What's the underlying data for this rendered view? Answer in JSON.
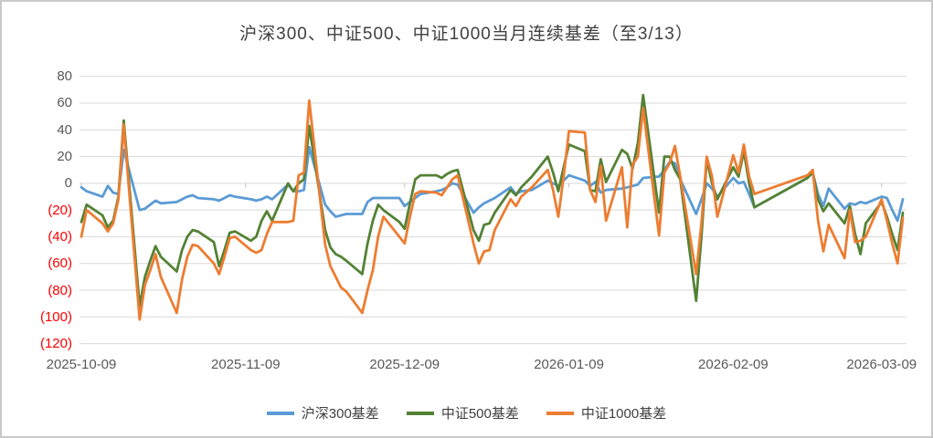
{
  "colors": {
    "grid": "#d9d9d9",
    "tick": "#bfbfbf",
    "axis_label": "#595959",
    "negative_label": "#ff0000",
    "title": "#404040",
    "series_hs300": "#5b9bd5",
    "series_zz500": "#548235",
    "series_zz1000": "#ed7d31"
  },
  "chart_data": {
    "type": "line",
    "title": "沪深300、中证500、中证1000当月连续基差（至3/13）",
    "xlabel": "",
    "ylabel": "",
    "grid": true,
    "legend_position": "bottom",
    "y_axis": {
      "min": -120,
      "max": 80,
      "step": 20,
      "negative_format": "parentheses-red"
    },
    "x_axis": {
      "ticks": [
        "2025-10-09",
        "2025-11-09",
        "2025-12-09",
        "2026-01-09",
        "2026-02-09",
        "2026-03-09"
      ],
      "tick_labels": [
        "2025-10-09",
        "2025-11-09",
        "2025-12-09",
        "2026-01-09",
        "2026-02-09",
        "2026-03-09"
      ]
    },
    "dates": [
      "2025-10-09",
      "2025-10-10",
      "2025-10-13",
      "2025-10-14",
      "2025-10-15",
      "2025-10-16",
      "2025-10-17",
      "2025-10-20",
      "2025-10-21",
      "2025-10-22",
      "2025-10-23",
      "2025-10-24",
      "2025-10-27",
      "2025-10-28",
      "2025-10-29",
      "2025-10-30",
      "2025-10-31",
      "2025-11-03",
      "2025-11-04",
      "2025-11-05",
      "2025-11-06",
      "2025-11-07",
      "2025-11-10",
      "2025-11-11",
      "2025-11-12",
      "2025-11-13",
      "2025-11-14",
      "2025-11-17",
      "2025-11-18",
      "2025-11-19",
      "2025-11-20",
      "2025-11-21",
      "2025-11-24",
      "2025-11-25",
      "2025-11-26",
      "2025-11-27",
      "2025-11-28",
      "2025-12-01",
      "2025-12-02",
      "2025-12-03",
      "2025-12-04",
      "2025-12-05",
      "2025-12-08",
      "2025-12-09",
      "2025-12-10",
      "2025-12-11",
      "2025-12-12",
      "2025-12-15",
      "2025-12-16",
      "2025-12-17",
      "2025-12-18",
      "2025-12-19",
      "2025-12-22",
      "2025-12-23",
      "2025-12-24",
      "2025-12-25",
      "2025-12-26",
      "2025-12-29",
      "2025-12-30",
      "2025-12-31",
      "2026-01-02",
      "2026-01-05",
      "2026-01-06",
      "2026-01-07",
      "2026-01-08",
      "2026-01-09",
      "2026-01-12",
      "2026-01-13",
      "2026-01-14",
      "2026-01-15",
      "2026-01-16",
      "2026-01-19",
      "2026-01-20",
      "2026-01-21",
      "2026-01-22",
      "2026-01-23",
      "2026-01-26",
      "2026-01-27",
      "2026-01-28",
      "2026-01-29",
      "2026-01-30",
      "2026-02-02",
      "2026-02-03",
      "2026-02-04",
      "2026-02-05",
      "2026-02-06",
      "2026-02-09",
      "2026-02-10",
      "2026-02-11",
      "2026-02-12",
      "2026-02-13",
      "2026-02-23",
      "2026-02-24",
      "2026-02-25",
      "2026-02-26",
      "2026-02-27",
      "2026-03-02",
      "2026-03-03",
      "2026-03-04",
      "2026-03-05",
      "2026-03-06",
      "2026-03-09",
      "2026-03-10",
      "2026-03-11",
      "2026-03-12",
      "2026-03-13"
    ],
    "series": [
      {
        "name": "沪深300基差",
        "color": "#5b9bd5",
        "values": [
          -3,
          -6,
          -10,
          -2,
          -7,
          -8,
          25,
          -20,
          -19,
          -16,
          -13,
          -15,
          -14,
          -12,
          -10,
          -9,
          -11,
          -12,
          -13,
          -11,
          -9,
          -10,
          -12,
          -13,
          -12,
          -10,
          -12,
          -1,
          -6,
          -6,
          -5,
          27,
          -16,
          -21,
          -25,
          -24,
          -23,
          -23,
          -14,
          -11,
          -11,
          -11,
          -11,
          -17,
          -14,
          -11,
          -8,
          -6,
          -5,
          -3,
          0,
          -1,
          -22,
          -18,
          -15,
          -13,
          -11,
          -3,
          -8,
          -6,
          -5,
          2,
          0,
          -2,
          2,
          6,
          2,
          -2,
          1,
          -7,
          -5,
          -4,
          -3,
          -2,
          -1,
          4,
          5,
          10,
          16,
          15,
          3,
          -23,
          -12,
          0,
          -4,
          -10,
          4,
          0,
          1,
          -8,
          -18,
          4,
          8,
          -8,
          -17,
          -4,
          -19,
          -15,
          -16,
          -14,
          -15,
          -10,
          -11,
          -20,
          -28,
          -12
        ]
      },
      {
        "name": "中证500基差",
        "color": "#548235",
        "values": [
          -29,
          -16,
          -24,
          -33,
          -28,
          -10,
          47,
          -92,
          -70,
          -58,
          -47,
          -55,
          -66,
          -50,
          -40,
          -35,
          -36,
          -44,
          -62,
          -50,
          -37,
          -36,
          -43,
          -40,
          -28,
          -21,
          -28,
          0,
          -6,
          0,
          3,
          43,
          -35,
          -48,
          -53,
          -55,
          -58,
          -68,
          -45,
          -28,
          -16,
          -20,
          -29,
          -34,
          -15,
          3,
          6,
          6,
          4,
          7,
          9,
          10,
          -35,
          -43,
          -31,
          -30,
          -22,
          -5,
          -9,
          -3,
          5,
          20,
          8,
          -6,
          12,
          29,
          24,
          -5,
          -6,
          18,
          1,
          25,
          22,
          11,
          30,
          66,
          -22,
          20,
          20,
          10,
          3,
          -88,
          -40,
          18,
          0,
          -12,
          12,
          5,
          24,
          0,
          -18,
          4,
          8,
          -12,
          -21,
          -15,
          -30,
          -17,
          -38,
          -53,
          -30,
          -14,
          -25,
          -38,
          -50,
          -22
        ]
      },
      {
        "name": "中证1000基差",
        "color": "#ed7d31",
        "values": [
          -40,
          -20,
          -30,
          -36,
          -30,
          -12,
          44,
          -102,
          -76,
          -65,
          -53,
          -70,
          -97,
          -72,
          -55,
          -46,
          -47,
          -60,
          -68,
          -55,
          -41,
          -40,
          -50,
          -52,
          -50,
          -38,
          -29,
          -29,
          -28,
          6,
          8,
          62,
          -46,
          -62,
          -70,
          -78,
          -81,
          -97,
          -80,
          -65,
          -40,
          -25,
          -40,
          -45,
          -25,
          -8,
          -6,
          -7,
          -9,
          -3,
          3,
          6,
          -45,
          -60,
          -51,
          -50,
          -35,
          -12,
          -17,
          -10,
          -3,
          10,
          -5,
          -25,
          5,
          39,
          38,
          -5,
          -14,
          13,
          -28,
          12,
          -33,
          14,
          20,
          56,
          -39,
          8,
          15,
          28,
          5,
          -68,
          -30,
          20,
          5,
          -25,
          21,
          8,
          29,
          5,
          -8,
          6,
          10,
          -28,
          -51,
          -31,
          -56,
          -20,
          -44,
          -43,
          -40,
          -12,
          -28,
          -45,
          -60,
          -26
        ]
      }
    ]
  }
}
